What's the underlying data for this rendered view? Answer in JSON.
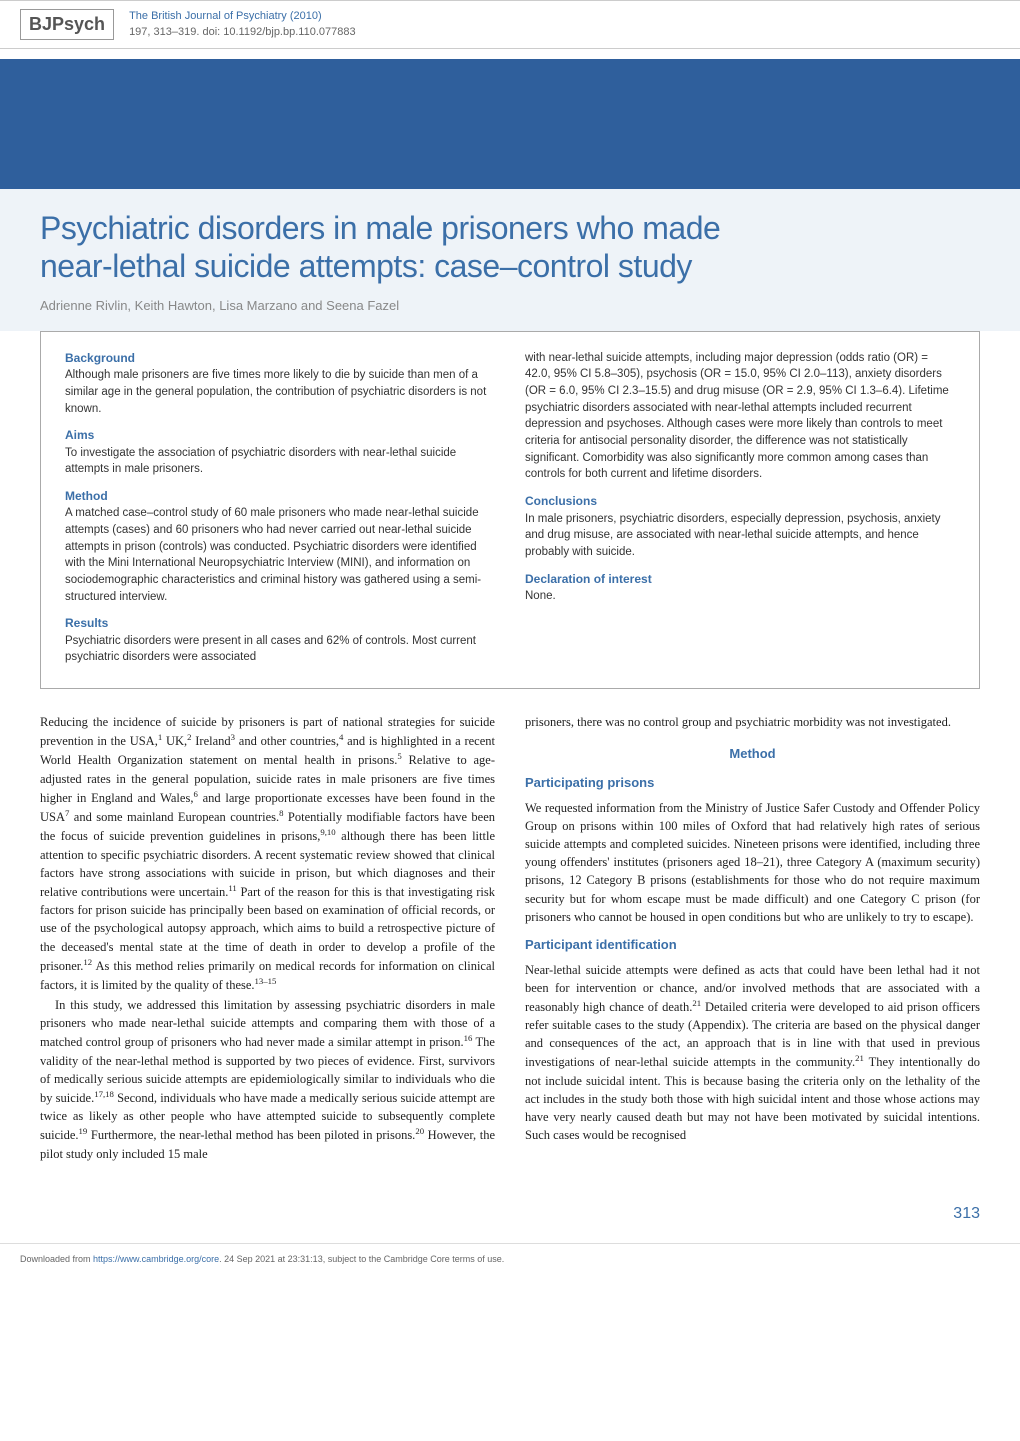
{
  "header": {
    "logo_prefix": "BJ",
    "logo_suffix": "Psych",
    "journal_title": "The British Journal of Psychiatry (2010)",
    "citation": "197, 313–319. doi: 10.1192/bjp.bp.110.077883"
  },
  "title": {
    "line1": "Psychiatric disorders in male prisoners who made",
    "line2": "near-lethal suicide attempts: case–control study",
    "authors": "Adrienne Rivlin, Keith Hawton, Lisa Marzano and Seena Fazel"
  },
  "abstract": {
    "background_h": "Background",
    "background": "Although male prisoners are five times more likely to die by suicide than men of a similar age in the general population, the contribution of psychiatric disorders is not known.",
    "aims_h": "Aims",
    "aims": "To investigate the association of psychiatric disorders with near-lethal suicide attempts in male prisoners.",
    "method_h": "Method",
    "method": "A matched case–control study of 60 male prisoners who made near-lethal suicide attempts (cases) and 60 prisoners who had never carried out near-lethal suicide attempts in prison (controls) was conducted. Psychiatric disorders were identified with the Mini International Neuropsychiatric Interview (MINI), and information on sociodemographic characteristics and criminal history was gathered using a semi-structured interview.",
    "results_h": "Results",
    "results_left": "Psychiatric disorders were present in all cases and 62% of controls. Most current psychiatric disorders were associated",
    "results_right": "with near-lethal suicide attempts, including major depression (odds ratio (OR) = 42.0, 95% CI 5.8–305), psychosis (OR = 15.0, 95% CI 2.0–113), anxiety disorders (OR = 6.0, 95% CI 2.3–15.5) and drug misuse (OR = 2.9, 95% CI 1.3–6.4). Lifetime psychiatric disorders associated with near-lethal attempts included recurrent depression and psychoses. Although cases were more likely than controls to meet criteria for antisocial personality disorder, the difference was not statistically significant. Comorbidity was also significantly more common among cases than controls for both current and lifetime disorders.",
    "conclusions_h": "Conclusions",
    "conclusions": "In male prisoners, psychiatric disorders, especially depression, psychosis, anxiety and drug misuse, are associated with near-lethal suicide attempts, and hence probably with suicide.",
    "declaration_h": "Declaration of interest",
    "declaration": "None."
  },
  "body": {
    "left_p1_a": "Reducing the incidence of suicide by prisoners is part of national strategies for suicide prevention in the USA,",
    "left_p1_b": " UK,",
    "left_p1_c": " Ireland",
    "left_p1_d": " and other countries,",
    "left_p1_e": " and is highlighted in a recent World Health Organization statement on mental health in prisons.",
    "left_p1_f": " Relative to age-adjusted rates in the general population, suicide rates in male prisoners are five times higher in England and Wales,",
    "left_p1_g": " and large proportionate excesses have been found in the USA",
    "left_p1_h": " and some mainland European countries.",
    "left_p1_i": " Potentially modifiable factors have been the focus of suicide prevention guidelines in prisons,",
    "left_p1_j": " although there has been little attention to specific psychiatric disorders. A recent systematic review showed that clinical factors have strong associations with suicide in prison, but which diagnoses and their relative contributions were uncertain.",
    "left_p1_k": " Part of the reason for this is that investigating risk factors for prison suicide has principally been based on examination of official records, or use of the psychological autopsy approach, which aims to build a retrospective picture of the deceased's mental state at the time of death in order to develop a profile of the prisoner.",
    "left_p1_l": " As this method relies primarily on medical records for information on clinical factors, it is limited by the quality of these.",
    "left_p2_a": "In this study, we addressed this limitation by assessing psychiatric disorders in male prisoners who made near-lethal suicide attempts and comparing them with those of a matched control group of prisoners who had never made a similar attempt in prison.",
    "left_p2_b": " The validity of the near-lethal method is supported by two pieces of evidence. First, survivors of medically serious suicide attempts are epidemiologically similar to individuals who die by suicide.",
    "left_p2_c": " Second, individuals who have made a medically serious suicide attempt are twice as likely as other people who have attempted suicide to subsequently complete suicide.",
    "left_p2_d": " Furthermore, the near-lethal method has been piloted in prisons.",
    "left_p2_e": " However, the pilot study only included 15 male",
    "right_p1": "prisoners, there was no control group and psychiatric morbidity was not investigated.",
    "method_heading": "Method",
    "participating_h": "Participating prisons",
    "participating_p": "We requested information from the Ministry of Justice Safer Custody and Offender Policy Group on prisons within 100 miles of Oxford that had relatively high rates of serious suicide attempts and completed suicides. Nineteen prisons were identified, including three young offenders' institutes (prisoners aged 18–21), three Category A (maximum security) prisons, 12 Category B prisons (establishments for those who do not require maximum security but for whom escape must be made difficult) and one Category C prison (for prisoners who cannot be housed in open conditions but who are unlikely to try to escape).",
    "identification_h": "Participant identification",
    "identification_p_a": "Near-lethal suicide attempts were defined as acts that could have been lethal had it not been for intervention or chance, and/or involved methods that are associated with a reasonably high chance of death.",
    "identification_p_b": " Detailed criteria were developed to aid prison officers refer suitable cases to the study (Appendix). The criteria are based on the physical danger and consequences of the act, an approach that is in line with that used in previous investigations of near-lethal suicide attempts in the community.",
    "identification_p_c": " They intentionally do not include suicidal intent. This is because basing the criteria only on the lethality of the act includes in the study both those with high suicidal intent and those whose actions may have very nearly caused death but may not have been motivated by suicidal intentions. Such cases would be recognised"
  },
  "refs": {
    "r1": "1",
    "r2": "2",
    "r3": "3",
    "r4": "4",
    "r5": "5",
    "r6": "6",
    "r7": "7",
    "r8": "8",
    "r9_10": "9,10",
    "r11": "11",
    "r12": "12",
    "r13_15": "13–15",
    "r16": "16",
    "r17_18": "17,18",
    "r19": "19",
    "r20": "20",
    "r21": "21"
  },
  "page_number": "313",
  "footer": {
    "prefix": "Downloaded from ",
    "url": "https://www.cambridge.org/core",
    "suffix": ". 24 Sep 2021 at 23:31:13, subject to the Cambridge Core terms of use."
  },
  "colors": {
    "blue": "#3b6fa8",
    "banner": "#2f5f9c",
    "title_bg": "#eef3f8",
    "grey_text": "#888"
  }
}
